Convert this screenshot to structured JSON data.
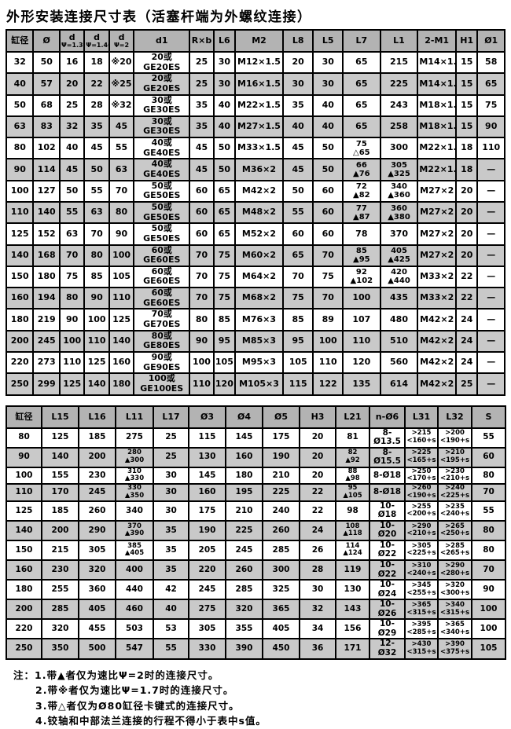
{
  "title": "外形安装连接尺寸表（活塞杆端为外螺纹连接）",
  "colors": {
    "header_bg": "#b3b3b3",
    "row_alt_bg": "#c9c9c9",
    "border": "#000000",
    "background": "#ffffff"
  },
  "table1": {
    "headers": [
      {
        "label": "缸径",
        "sub": ""
      },
      {
        "label": "Ø",
        "sub": ""
      },
      {
        "label": "d",
        "sub": "Ψ=1.33"
      },
      {
        "label": "d",
        "sub": "Ψ=1.46"
      },
      {
        "label": "d",
        "sub": "Ψ=2"
      },
      {
        "label": "d1",
        "sub": ""
      },
      {
        "label": "R×b",
        "sub": ""
      },
      {
        "label": "L6",
        "sub": ""
      },
      {
        "label": "M2",
        "sub": ""
      },
      {
        "label": "L8",
        "sub": ""
      },
      {
        "label": "L5",
        "sub": ""
      },
      {
        "label": "L7",
        "sub": ""
      },
      {
        "label": "L1",
        "sub": ""
      },
      {
        "label": "2-M1",
        "sub": ""
      },
      {
        "label": "H1",
        "sub": ""
      },
      {
        "label": "Ø1",
        "sub": ""
      }
    ],
    "rows": [
      [
        "32",
        "50",
        "16",
        "18",
        "※20",
        "20或GE20ES",
        "25",
        "30",
        "M12×1.5",
        "20",
        "30",
        "65",
        "215",
        "M14×1.5",
        "15",
        "58"
      ],
      [
        "40",
        "57",
        "20",
        "22",
        "※25",
        "20或GE20ES",
        "25",
        "30",
        "M16×1.5",
        "30",
        "30",
        "65",
        "225",
        "M14×1.5",
        "15",
        "65"
      ],
      [
        "50",
        "68",
        "25",
        "28",
        "※32",
        "30或GE30ES",
        "35",
        "40",
        "M22×1.5",
        "35",
        "40",
        "65",
        "243",
        "M18×1.5",
        "15",
        "75"
      ],
      [
        "63",
        "83",
        "32",
        "35",
        "45",
        "30或GE30ES",
        "35",
        "40",
        "M27×1.5",
        "40",
        "40",
        "65",
        "258",
        "M18×1.5",
        "15",
        "90"
      ],
      [
        "80",
        "102",
        "40",
        "45",
        "55",
        "40或GE40ES",
        "45",
        "50",
        "M33×1.5",
        "45",
        "50",
        "75\n△65",
        "300",
        "M22×1.5",
        "18",
        "110"
      ],
      [
        "90",
        "114",
        "45",
        "50",
        "63",
        "40或GE40ES",
        "45",
        "50",
        "M36×2",
        "45",
        "50",
        "66\n▲76",
        "305\n▲325",
        "M22×1.5",
        "18",
        "—"
      ],
      [
        "100",
        "127",
        "50",
        "55",
        "70",
        "50或GE50ES",
        "60",
        "65",
        "M42×2",
        "50",
        "60",
        "72\n▲82",
        "340\n▲360",
        "M27×2",
        "20",
        "—"
      ],
      [
        "110",
        "140",
        "55",
        "63",
        "80",
        "50或GE50ES",
        "60",
        "65",
        "M48×2",
        "55",
        "60",
        "77\n▲87",
        "360\n▲380",
        "M27×2",
        "20",
        "—"
      ],
      [
        "125",
        "152",
        "63",
        "70",
        "90",
        "50或GE50ES",
        "60",
        "65",
        "M52×2",
        "60",
        "60",
        "78",
        "370",
        "M27×2",
        "20",
        "—"
      ],
      [
        "140",
        "168",
        "70",
        "80",
        "100",
        "60或GE60ES",
        "70",
        "75",
        "M60×2",
        "65",
        "70",
        "85\n▲95",
        "405\n▲425",
        "M27×2",
        "20",
        "—"
      ],
      [
        "150",
        "180",
        "75",
        "85",
        "105",
        "60或GE60ES",
        "70",
        "75",
        "M64×2",
        "70",
        "75",
        "92\n▲102",
        "420\n▲440",
        "M33×2",
        "22",
        "—"
      ],
      [
        "160",
        "194",
        "80",
        "90",
        "110",
        "60或GE60ES",
        "70",
        "75",
        "M68×2",
        "75",
        "70",
        "100",
        "435",
        "M33×2",
        "22",
        "—"
      ],
      [
        "180",
        "219",
        "90",
        "100",
        "125",
        "70或GE70ES",
        "80",
        "85",
        "M76×3",
        "85",
        "89",
        "107",
        "480",
        "M42×2",
        "24",
        "—"
      ],
      [
        "200",
        "245",
        "100",
        "110",
        "140",
        "80或GE80ES",
        "90",
        "95",
        "M85×3",
        "95",
        "100",
        "110",
        "510",
        "M42×2",
        "24",
        "—"
      ],
      [
        "220",
        "273",
        "110",
        "125",
        "160",
        "90或GE90ES",
        "100",
        "105",
        "M95×3",
        "105",
        "110",
        "120",
        "560",
        "M42×2",
        "24",
        "—"
      ],
      [
        "250",
        "299",
        "125",
        "140",
        "180",
        "100或GE100ES",
        "110",
        "120",
        "M105×3",
        "115",
        "122",
        "135",
        "614",
        "M42×2",
        "25",
        "—"
      ]
    ]
  },
  "table2": {
    "headers": [
      {
        "label": "缸径",
        "sub": ""
      },
      {
        "label": "L15",
        "sub": ""
      },
      {
        "label": "L16",
        "sub": ""
      },
      {
        "label": "L11",
        "sub": ""
      },
      {
        "label": "L17",
        "sub": ""
      },
      {
        "label": "Ø3",
        "sub": ""
      },
      {
        "label": "Ø4",
        "sub": ""
      },
      {
        "label": "Ø5",
        "sub": ""
      },
      {
        "label": "H3",
        "sub": ""
      },
      {
        "label": "L21",
        "sub": ""
      },
      {
        "label": "n-Ø6",
        "sub": ""
      },
      {
        "label": "L31",
        "sub": ""
      },
      {
        "label": "L32",
        "sub": ""
      },
      {
        "label": "S",
        "sub": ""
      }
    ],
    "rows": [
      [
        "80",
        "125",
        "185",
        "275",
        "25",
        "115",
        "145",
        "175",
        "20",
        "81",
        "8-Ø13.5",
        ">215\n<160+s",
        ">200\n<190+s",
        "55"
      ],
      [
        "90",
        "140",
        "200",
        "280\n▲300",
        "25",
        "130",
        "160",
        "190",
        "20",
        "82\n▲92",
        "8-Ø15.5",
        ">225\n<165+s",
        ">210\n<195+s",
        "60"
      ],
      [
        "100",
        "155",
        "230",
        "310\n▲330",
        "30",
        "145",
        "180",
        "210",
        "20",
        "88\n▲98",
        "8-Ø18",
        ">250\n<170+s",
        ">230\n<210+s",
        "80"
      ],
      [
        "110",
        "170",
        "245",
        "330\n▲350",
        "30",
        "160",
        "195",
        "225",
        "22",
        "95\n▲105",
        "8-Ø18",
        ">260\n<190+s",
        ">240\n<225+s",
        "70"
      ],
      [
        "125",
        "185",
        "260",
        "340",
        "30",
        "175",
        "210",
        "240",
        "22",
        "98",
        "10-Ø18",
        ">255\n<200+s",
        ">235\n<240+s",
        "55"
      ],
      [
        "140",
        "200",
        "290",
        "370\n▲390",
        "35",
        "190",
        "225",
        "260",
        "24",
        "108\n▲118",
        "10-Ø20",
        ">290\n<210+s",
        ">265\n<250+s",
        "80"
      ],
      [
        "150",
        "215",
        "305",
        "385\n▲405",
        "35",
        "205",
        "245",
        "285",
        "26",
        "114\n▲124",
        "10-Ø22",
        ">305\n<225+s",
        ">285\n<265+s",
        "80"
      ],
      [
        "160",
        "230",
        "320",
        "400",
        "35",
        "220",
        "260",
        "300",
        "28",
        "119",
        "10-Ø22",
        ">310\n<240+s",
        ">290\n<280+s",
        "70"
      ],
      [
        "180",
        "255",
        "360",
        "440",
        "42",
        "245",
        "285",
        "325",
        "30",
        "130",
        "10-Ø24",
        ">345\n<255+s",
        ">320\n<300+s",
        "90"
      ],
      [
        "200",
        "285",
        "405",
        "460",
        "40",
        "275",
        "320",
        "365",
        "32",
        "143",
        "10-Ø26",
        ">365\n<315+s",
        ">340\n<315+s",
        "100"
      ],
      [
        "220",
        "320",
        "455",
        "503",
        "53",
        "305",
        "355",
        "405",
        "34",
        "156",
        "10-Ø29",
        ">395\n<285+s",
        ">365\n<340+s",
        "100"
      ],
      [
        "250",
        "350",
        "500",
        "547",
        "55",
        "330",
        "390",
        "450",
        "36",
        "171",
        "12-Ø32",
        ">430\n<315+s",
        ">390\n<375+s",
        "105"
      ]
    ]
  },
  "notes": [
    "注：1.带▲者仅为速比Ψ=2时的连接尺寸。",
    "2.带※者仅为速比Ψ=1.7时的连接尺寸。",
    "3.带△者仅为Ø80缸径卡键式的连接尺寸。",
    "4.铰轴和中部法兰连接的行程不得小于表中s值。"
  ]
}
